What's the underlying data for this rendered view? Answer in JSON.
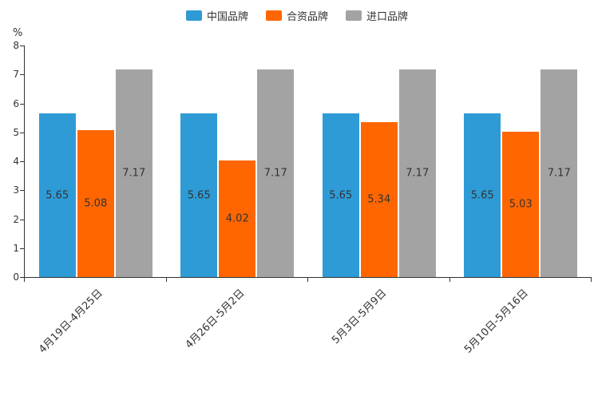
{
  "chart_data": {
    "type": "bar",
    "title": "",
    "xlabel": "",
    "ylabel": "%",
    "ylim": [
      0,
      8
    ],
    "yticks": [
      0,
      1,
      2,
      3,
      4,
      5,
      6,
      7,
      8
    ],
    "grid": false,
    "legend_position": "top",
    "categories": [
      "4月19日-4月25日",
      "4月26日-5月2日",
      "5月3日-5月9日",
      "5月10日-5月16日"
    ],
    "series": [
      {
        "name": "中国品牌",
        "color": "#2E9BD6",
        "values": [
          5.65,
          5.65,
          5.65,
          5.65
        ]
      },
      {
        "name": "合资品牌",
        "color": "#FF6600",
        "values": [
          5.08,
          4.02,
          5.34,
          5.03
        ]
      },
      {
        "name": "进口品牌",
        "color": "#A3A3A3",
        "values": [
          7.17,
          7.17,
          7.17,
          7.17
        ]
      }
    ]
  }
}
